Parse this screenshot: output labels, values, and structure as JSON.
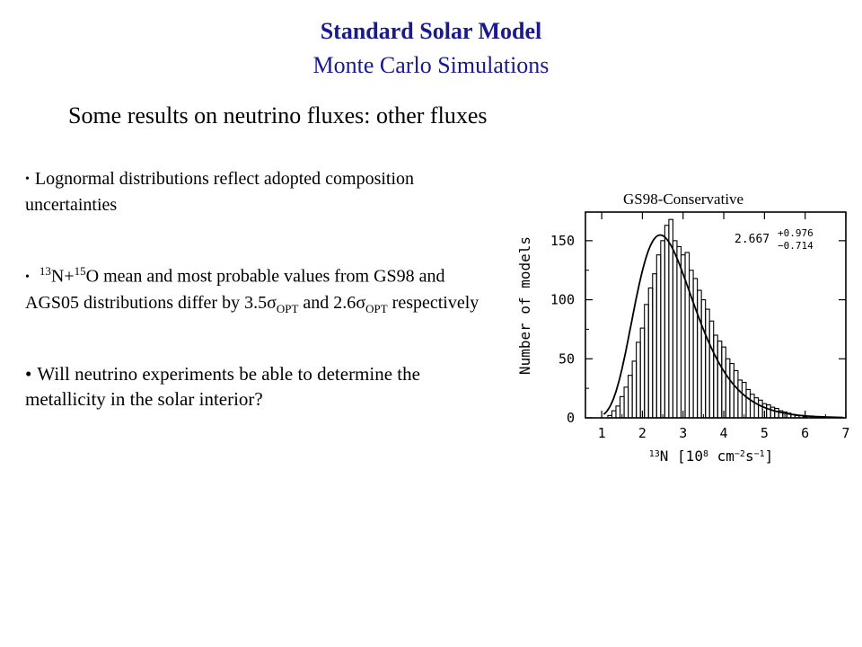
{
  "title": "Standard Solar Model",
  "subtitle": "Monte Carlo Simulations",
  "heading": "Some results on neutrino fluxes: other fluxes",
  "bullets": {
    "b1": "Lognormal distributions reflect adopted composition uncertainties",
    "b2_sup1": "13",
    "b2_t1": "N+",
    "b2_sup2": "15",
    "b2_t2": "O mean and most probable values from GS98 and AGS05 distributions differ by 3.5",
    "b2_sigma": "σ",
    "b2_sub1": "OPT",
    "b2_t3": "and 2.6",
    "b2_sub2": "OPT",
    "b2_t4": "respectively",
    "b3": "Will neutrino experiments be able to determine the metallicity in the solar interior?"
  },
  "panel_label": "GS98-Conservative",
  "colors": {
    "title": "#1a1a8c",
    "plot": "#000000"
  },
  "chart_data": {
    "type": "histogram",
    "xlabel_prefix": "13",
    "xlabel_main": "N [10",
    "xlabel_exp1": "8",
    "xlabel_mid": " cm",
    "xlabel_exp2": "−2",
    "xlabel_s": "s",
    "xlabel_exp3": "−1",
    "xlabel_end": "]",
    "ylabel": "Number of models",
    "xlim": [
      0.6,
      7.0
    ],
    "ylim": [
      0,
      175
    ],
    "xticks": [
      "1",
      "2",
      "3",
      "4",
      "5",
      "6",
      "7"
    ],
    "yticks": [
      "0",
      "50",
      "100",
      "150"
    ],
    "annotation_value": "2.667",
    "annotation_plus": "+0.976",
    "annotation_minus": "−0.714",
    "fit": {
      "peak_x": 2.667,
      "peak_y": 148,
      "sigma_ln": 0.3
    },
    "bins": [
      [
        1.2,
        2
      ],
      [
        1.3,
        6
      ],
      [
        1.4,
        10
      ],
      [
        1.5,
        18
      ],
      [
        1.6,
        26
      ],
      [
        1.7,
        36
      ],
      [
        1.8,
        48
      ],
      [
        1.9,
        64
      ],
      [
        2.0,
        76
      ],
      [
        2.1,
        96
      ],
      [
        2.2,
        110
      ],
      [
        2.3,
        122
      ],
      [
        2.4,
        138
      ],
      [
        2.5,
        150
      ],
      [
        2.6,
        163
      ],
      [
        2.7,
        168
      ],
      [
        2.8,
        150
      ],
      [
        2.9,
        145
      ],
      [
        3.0,
        138
      ],
      [
        3.1,
        140
      ],
      [
        3.2,
        125
      ],
      [
        3.3,
        118
      ],
      [
        3.4,
        108
      ],
      [
        3.5,
        100
      ],
      [
        3.6,
        92
      ],
      [
        3.7,
        82
      ],
      [
        3.8,
        70
      ],
      [
        3.9,
        65
      ],
      [
        4.0,
        60
      ],
      [
        4.1,
        50
      ],
      [
        4.2,
        46
      ],
      [
        4.3,
        40
      ],
      [
        4.4,
        32
      ],
      [
        4.5,
        30
      ],
      [
        4.6,
        24
      ],
      [
        4.7,
        20
      ],
      [
        4.8,
        17
      ],
      [
        4.9,
        15
      ],
      [
        5.0,
        12
      ],
      [
        5.1,
        11
      ],
      [
        5.2,
        9
      ],
      [
        5.3,
        8
      ],
      [
        5.4,
        6
      ],
      [
        5.5,
        5
      ],
      [
        5.6,
        4
      ],
      [
        5.7,
        3
      ],
      [
        5.8,
        2
      ],
      [
        5.9,
        2
      ],
      [
        6.0,
        1
      ],
      [
        6.2,
        1
      ],
      [
        6.4,
        1
      ],
      [
        6.6,
        0
      ]
    ]
  }
}
